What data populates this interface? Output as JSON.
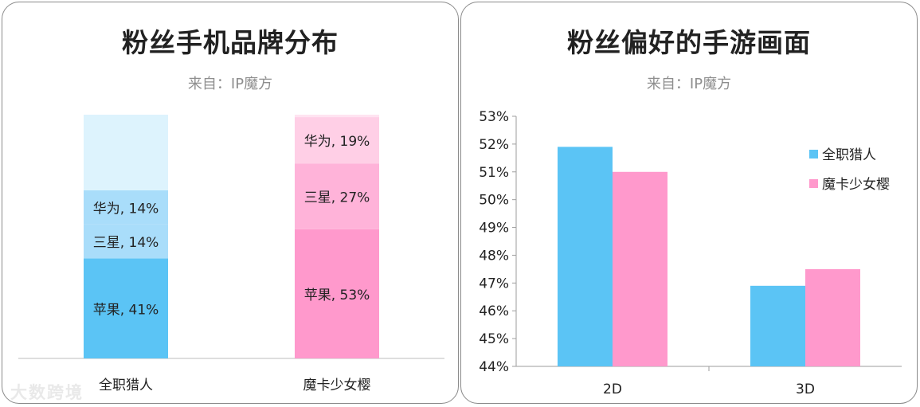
{
  "watermark": "大数跨境",
  "colors": {
    "blue_main": "#5bc4f5",
    "blue_mid": "#a9ddfa",
    "blue_light": "#ddf3fd",
    "pink_main": "#ff99cc",
    "pink_mid": "#ffb3d9",
    "pink_light": "#ffcfe6",
    "pink_top": "#ffe4f1"
  },
  "left": {
    "title": "粉丝手机品牌分布",
    "source": "来自：IP魔方"
  },
  "right": {
    "title": "粉丝偏好的手游画面",
    "source": "来自：IP魔方"
  },
  "chart_data": [
    {
      "type": "bar",
      "stacked": true,
      "title": "粉丝手机品牌分布",
      "subtitle": "来自：IP魔方",
      "categories": [
        "全职猎人",
        "魔卡少女樱"
      ],
      "series": [
        {
          "name": "苹果",
          "values": [
            41,
            53
          ],
          "labels": [
            "苹果, 41%",
            "苹果, 53%"
          ]
        },
        {
          "name": "三星",
          "values": [
            14,
            27
          ],
          "labels": [
            "三星, 14%",
            "三星, 27%"
          ]
        },
        {
          "name": "华为",
          "values": [
            14,
            19
          ],
          "labels": [
            "华为, 14%",
            "华为, 19%"
          ]
        },
        {
          "values": [
            31,
            1
          ],
          "labels": [
            "",
            ""
          ]
        }
      ],
      "ylim": [
        0,
        100
      ],
      "grid": false,
      "legend": "none"
    },
    {
      "type": "bar",
      "title": "粉丝偏好的手游画面",
      "subtitle": "来自：IP魔方",
      "categories": [
        "2D",
        "3D"
      ],
      "series": [
        {
          "name": "全职猎人",
          "values": [
            51.9,
            46.9
          ]
        },
        {
          "name": "魔卡少女樱",
          "values": [
            51.0,
            47.5
          ]
        }
      ],
      "ylim": [
        44,
        53
      ],
      "yticks": [
        "44%",
        "45%",
        "46%",
        "47%",
        "48%",
        "49%",
        "50%",
        "51%",
        "52%",
        "53%"
      ],
      "grid": false,
      "legend": "right"
    }
  ]
}
